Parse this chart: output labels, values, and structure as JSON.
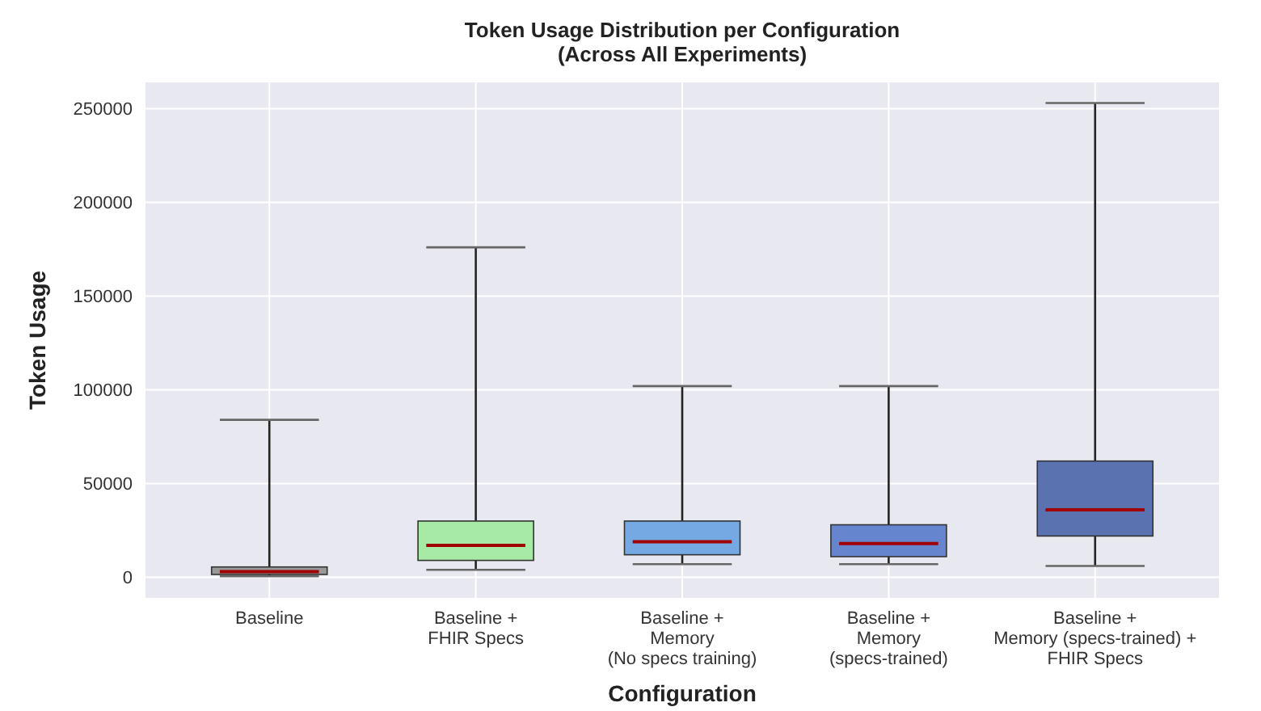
{
  "chart_data": {
    "type": "box",
    "title": "Token Usage Distribution per Configuration\n(Across All Experiments)",
    "xlabel": "Configuration",
    "ylabel": "Token Usage",
    "categories": [
      "Baseline",
      "Baseline +\nFHIR Specs",
      "Baseline +\nMemory\n(No specs training)",
      "Baseline +\nMemory\n(specs-trained)",
      "Baseline +\nMemory (specs-trained) +\nFHIR Specs"
    ],
    "colors": [
      "#999999",
      "#a6eaa6",
      "#74a9e3",
      "#6585cf",
      "#5a72b0"
    ],
    "boxes": [
      {
        "low": 500,
        "q1": 1500,
        "median": 3000,
        "q3": 5500,
        "high": 84000
      },
      {
        "low": 4000,
        "q1": 9000,
        "median": 17000,
        "q3": 30000,
        "high": 176000
      },
      {
        "low": 7000,
        "q1": 12000,
        "median": 19000,
        "q3": 30000,
        "high": 102000
      },
      {
        "low": 7000,
        "q1": 11000,
        "median": 18000,
        "q3": 28000,
        "high": 102000
      },
      {
        "low": 6000,
        "q1": 22000,
        "median": 36000,
        "q3": 62000,
        "high": 253000
      }
    ],
    "ylim": [
      -11000,
      264000
    ],
    "yticks": [
      0,
      50000,
      100000,
      150000,
      200000,
      250000
    ],
    "grid": true
  }
}
